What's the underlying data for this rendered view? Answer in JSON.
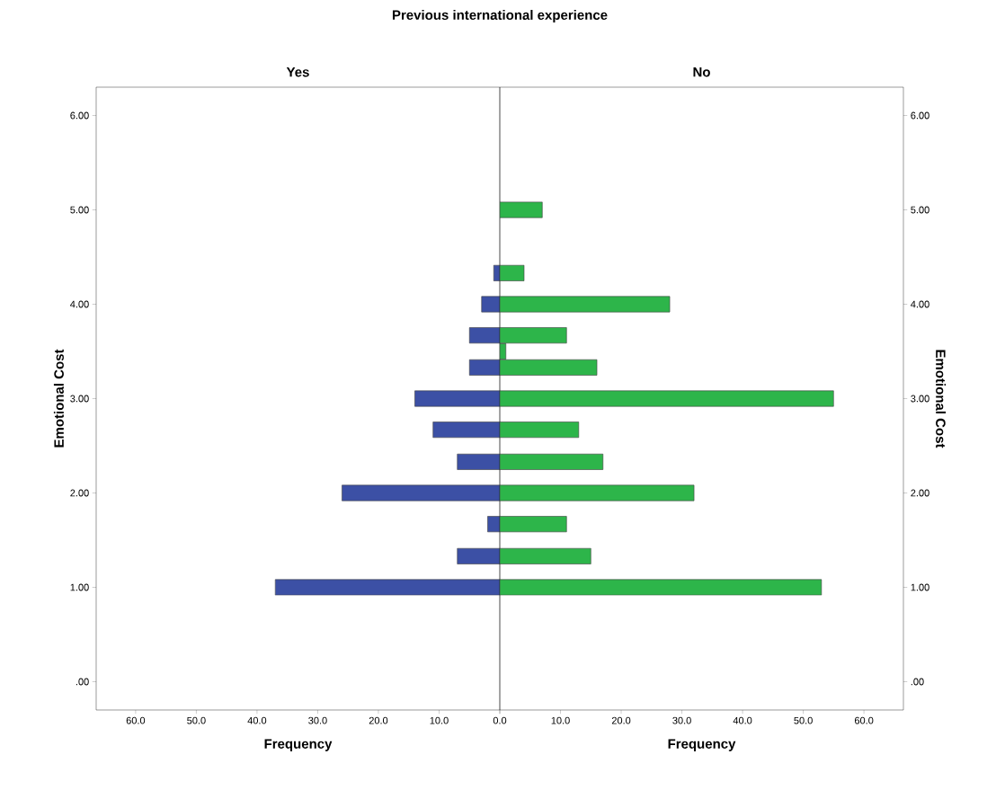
{
  "chart_data": [
    {
      "type": "bar",
      "orientation": "horizontal",
      "title": "Yes",
      "annotations": [
        "Previous international experience"
      ],
      "xlabel": "Frequency",
      "ylabel": "Emotional Cost",
      "x": [
        1.0,
        1.33,
        1.67,
        2.0,
        2.33,
        2.67,
        3.0,
        3.33,
        3.67,
        4.0,
        4.33
      ],
      "values": [
        37,
        7,
        2,
        26,
        7,
        11,
        14,
        5,
        5,
        3,
        1
      ],
      "color": "#3c50a5",
      "xlim": [
        66.5,
        0
      ],
      "ylim": [
        -0.3,
        6.3
      ],
      "xticks": [
        {
          "value": 60,
          "label": "60.0"
        },
        {
          "value": 50,
          "label": "50.0"
        },
        {
          "value": 40,
          "label": "40.0"
        },
        {
          "value": 30,
          "label": "30.0"
        },
        {
          "value": 20,
          "label": "20.0"
        },
        {
          "value": 10,
          "label": "10.0"
        },
        {
          "value": 0,
          "label": null
        }
      ],
      "yticks": [
        {
          "value": 0,
          "label": ".00"
        },
        {
          "value": 1,
          "label": "1.00"
        },
        {
          "value": 2,
          "label": "2.00"
        },
        {
          "value": 3,
          "label": "3.00"
        },
        {
          "value": 4,
          "label": "4.00"
        },
        {
          "value": 5,
          "label": "5.00"
        },
        {
          "value": 6,
          "label": "6.00"
        }
      ]
    },
    {
      "type": "bar",
      "orientation": "horizontal",
      "title": "No",
      "xlabel": "Frequency",
      "ylabel": "Emotional Cost",
      "x": [
        1.0,
        1.33,
        1.67,
        2.0,
        2.33,
        2.67,
        3.0,
        3.33,
        3.5,
        3.67,
        4.0,
        4.33,
        5.0
      ],
      "values": [
        53,
        15,
        11,
        32,
        17,
        13,
        55,
        16,
        1,
        11,
        28,
        4,
        7
      ],
      "color": "#2db54a",
      "xlim": [
        0,
        66.5
      ],
      "ylim": [
        -0.3,
        6.3
      ],
      "xticks": [
        {
          "value": 0,
          "label": "0.0"
        },
        {
          "value": 10,
          "label": "10.0"
        },
        {
          "value": 20,
          "label": "20.0"
        },
        {
          "value": 30,
          "label": "30.0"
        },
        {
          "value": 40,
          "label": "40.0"
        },
        {
          "value": 50,
          "label": "50.0"
        },
        {
          "value": 60,
          "label": "60.0"
        }
      ],
      "yticks": [
        {
          "value": 0,
          "label": ".00"
        },
        {
          "value": 1,
          "label": "1.00"
        },
        {
          "value": 2,
          "label": "2.00"
        },
        {
          "value": 3,
          "label": "3.00"
        },
        {
          "value": 4,
          "label": "4.00"
        },
        {
          "value": 5,
          "label": "5.00"
        },
        {
          "value": 6,
          "label": "6.00"
        }
      ]
    }
  ]
}
